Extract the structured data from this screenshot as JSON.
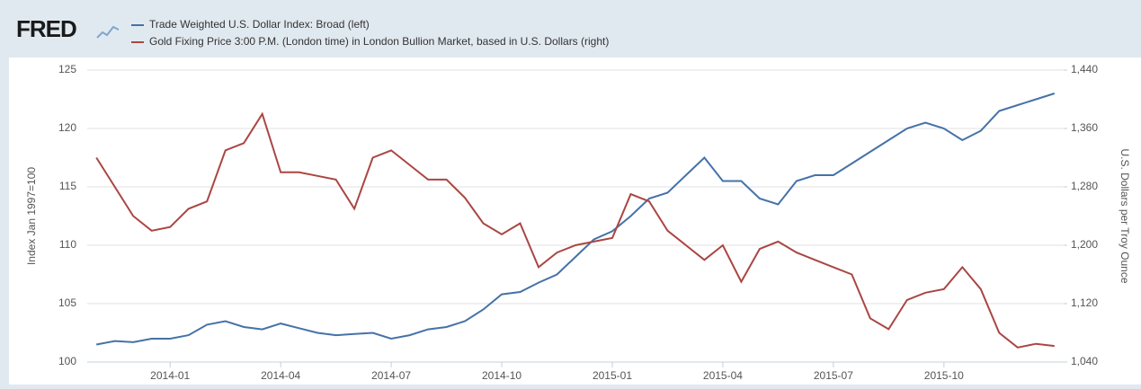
{
  "logo": "FRED",
  "chart_data": {
    "type": "line",
    "categories": [
      null,
      null,
      null,
      null,
      "2014-01",
      null,
      null,
      null,
      null,
      null,
      "2014-04",
      null,
      null,
      null,
      null,
      null,
      "2014-07",
      null,
      null,
      null,
      null,
      null,
      "2014-10",
      null,
      null,
      null,
      null,
      null,
      "2015-01",
      null,
      null,
      null,
      null,
      null,
      "2015-04",
      null,
      null,
      null,
      null,
      null,
      "2015-07",
      null,
      null,
      null,
      null,
      null,
      "2015-10",
      null,
      null,
      null,
      null,
      null,
      null
    ],
    "series": [
      {
        "name": "Trade Weighted U.S. Dollar Index: Broad (left)",
        "color": "#4572a7",
        "axis": "y",
        "values": [
          101.5,
          101.8,
          101.7,
          102.0,
          102.0,
          102.3,
          103.2,
          103.5,
          103.0,
          102.8,
          103.3,
          102.9,
          102.5,
          102.3,
          102.4,
          102.5,
          102.0,
          102.3,
          102.8,
          103.0,
          103.5,
          104.5,
          105.8,
          106.0,
          106.8,
          107.5,
          109.0,
          110.5,
          111.2,
          112.5,
          114.0,
          114.5,
          116.0,
          117.5,
          115.5,
          115.5,
          114.0,
          113.5,
          115.5,
          116.0,
          116.0,
          117.0,
          118.0,
          119.0,
          120.0,
          120.5,
          120.0,
          119.0,
          119.8,
          121.5,
          122.0,
          122.5,
          123.0
        ]
      },
      {
        "name": "Gold Fixing Price 3:00 P.M. (London time) in London Bullion Market, based in U.S. Dollars (right)",
        "color": "#aa4643",
        "axis": "y2",
        "values": [
          1320,
          1280,
          1240,
          1220,
          1225,
          1250,
          1260,
          1330,
          1340,
          1380,
          1300,
          1300,
          1295,
          1290,
          1250,
          1320,
          1330,
          1310,
          1290,
          1290,
          1265,
          1230,
          1215,
          1230,
          1170,
          1190,
          1200,
          1205,
          1210,
          1270,
          1260,
          1220,
          1200,
          1180,
          1200,
          1150,
          1195,
          1205,
          1190,
          1180,
          1170,
          1160,
          1100,
          1085,
          1125,
          1135,
          1140,
          1170,
          1140,
          1080,
          1060,
          1065,
          1062
        ]
      }
    ],
    "ylabel": "Index Jan 1997=100",
    "y2label": "U.S. Dollars per Troy Ounce",
    "ylim": [
      100,
      125
    ],
    "yticks": [
      100,
      105,
      110,
      115,
      120,
      125
    ],
    "y2lim": [
      1040,
      1440
    ],
    "y2ticks": [
      {
        "value": 1040,
        "label": "1,040"
      },
      {
        "value": 1120,
        "label": "1,120"
      },
      {
        "value": 1200,
        "label": "1,200"
      },
      {
        "value": 1280,
        "label": "1,280"
      },
      {
        "value": 1360,
        "label": "1,360"
      },
      {
        "value": 1440,
        "label": "1,440"
      }
    ],
    "grid": true,
    "legend": "top"
  }
}
